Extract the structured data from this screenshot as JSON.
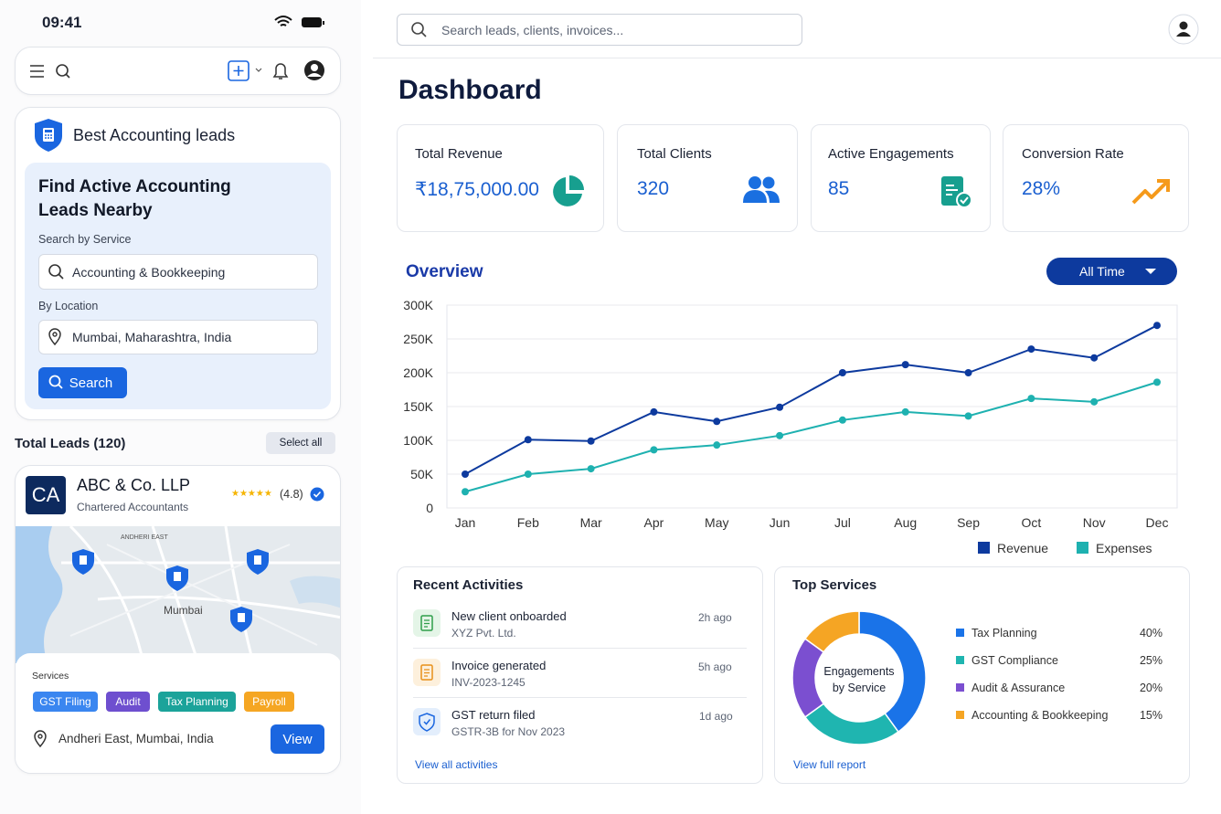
{
  "mobile": {
    "status_time": "09:41",
    "brand": "Best Accounting leads",
    "search_panel": {
      "title": "Find Active Accounting Leads Nearby",
      "service_label": "Search by Service",
      "service_value": "Accounting & Bookkeeping",
      "location_label": "By Location",
      "location_value": "Mumbai, Maharashtra, India",
      "button": "Search"
    },
    "leads": {
      "title": "Total Leads (120)",
      "select_all": "Select all"
    },
    "lead": {
      "initials": "CA",
      "name": "ABC & Co. LLP",
      "subtitle": "Chartered Accountants",
      "stars": "★★★★★",
      "rating": "(4.8)",
      "map_labels": [
        "ANDHERI EAST",
        "Mumbai"
      ],
      "services_label": "Services",
      "services": [
        "GST Filing",
        "Audit",
        "Tax Planning",
        "Payroll"
      ],
      "location": "Andheri East, Mumbai, India",
      "button": "View"
    }
  },
  "dashboard": {
    "search_placeholder": "Search leads, clients, invoices...",
    "title": "Dashboard",
    "stats": [
      {
        "label": "Total Revenue",
        "value": "₹18,75,000.00"
      },
      {
        "label": "Total Clients",
        "value": "320"
      },
      {
        "label": "Active Engagements",
        "value": "85"
      },
      {
        "label": "Conversion Rate",
        "value": "28%"
      }
    ],
    "overview": {
      "title": "Overview",
      "filter": "All Time",
      "chart": {
        "type": "line",
        "categories": [
          "Jan",
          "Feb",
          "Mar",
          "Apr",
          "May",
          "Jun",
          "Jul",
          "Aug",
          "Sep",
          "Oct",
          "Nov",
          "Dec"
        ],
        "series": [
          {
            "name": "Revenue",
            "color": "#0d3a9e",
            "values": [
              50000,
              101000,
              99000,
              142000,
              128000,
              149000,
              200000,
              212000,
              200000,
              235000,
              222000,
              270000
            ]
          },
          {
            "name": "Expenses",
            "color": "#1eb1b0",
            "values": [
              24000,
              50000,
              58000,
              86000,
              93000,
              107000,
              130000,
              142000,
              136000,
              162000,
              157000,
              186000
            ]
          }
        ],
        "ylim": [
          0,
          300000
        ],
        "yticks": [
          0,
          {
            "value": 50000,
            "label": "50K"
          },
          {
            "value": 100000,
            "label": "100K"
          },
          {
            "value": 150000,
            "label": "150K"
          },
          {
            "value": 200000,
            "label": "200K"
          },
          {
            "value": 250000,
            "label": "250K"
          },
          {
            "value": 300000,
            "label": "300K"
          }
        ],
        "grid": true
      }
    },
    "recent": {
      "title": "Recent Activities",
      "items": [
        {
          "title": "New client onboarded",
          "subtitle": "XYZ Pvt. Ltd.",
          "time": "2h ago"
        },
        {
          "title": "Invoice generated",
          "subtitle": "INV-2023-1245",
          "time": "5h ago"
        },
        {
          "title": "GST return filed",
          "subtitle": "GSTR-3B for Nov 2023",
          "time": "1d ago"
        }
      ],
      "link": "View all activities"
    },
    "top_services": {
      "title": "Top Services",
      "chart": {
        "type": "pie",
        "center_label": "Engagements by Service",
        "categories": [
          "Tax Planning",
          "GST Compliance",
          "Audit & Assurance",
          "Accounting & Bookkeeping"
        ],
        "values": [
          40,
          25,
          20,
          15
        ],
        "value_labels": [
          "40%",
          "25%",
          "20%",
          "15%"
        ],
        "colors": [
          "#1a73e8",
          "#1fb5b0",
          "#7b4fd0",
          "#f5a524"
        ]
      },
      "link": "View full report"
    }
  }
}
